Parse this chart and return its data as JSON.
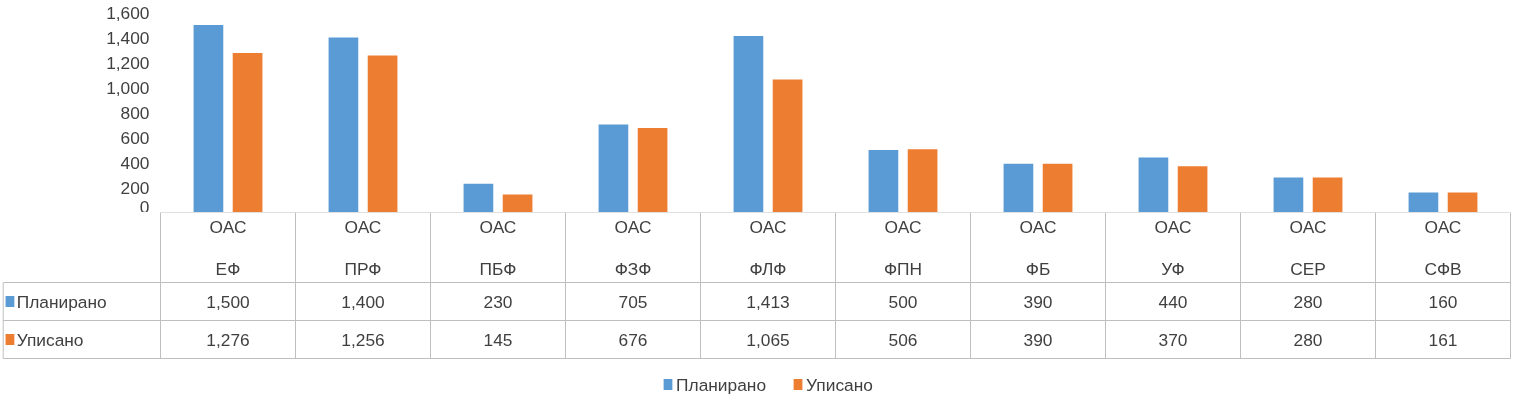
{
  "chart_data": {
    "type": "bar",
    "categories": [
      "ОАС\nЕФ",
      "ОАС\nПРФ",
      "ОАС\nПБФ",
      "ОАС\nФЗФ",
      "ОАС\nФЛФ",
      "ОАС\nФПН",
      "ОАС\nФБ",
      "ОАС\nУФ",
      "ОАС\nСЕР",
      "ОАС\nСФВ"
    ],
    "series": [
      {
        "name": "Планирано",
        "color": "#5b9bd5",
        "values": [
          1500,
          1400,
          230,
          705,
          1413,
          500,
          390,
          440,
          280,
          160
        ],
        "value_labels": [
          "1,500",
          "1,400",
          "230",
          "705",
          "1,413",
          "500",
          "390",
          "440",
          "280",
          "160"
        ]
      },
      {
        "name": "Уписано",
        "color": "#ed7d31",
        "values": [
          1276,
          1256,
          145,
          676,
          1065,
          506,
          390,
          370,
          280,
          161
        ],
        "value_labels": [
          "1,276",
          "1,256",
          "145",
          "676",
          "1,065",
          "506",
          "390",
          "370",
          "280",
          "161"
        ]
      }
    ],
    "ylim": [
      0,
      1600
    ],
    "yticks": [
      0,
      200,
      400,
      600,
      800,
      {
        "value": 1000,
        "label": "1,000"
      },
      {
        "value": 1200,
        "label": "1,200"
      },
      {
        "value": 1400,
        "label": "1,400"
      },
      {
        "value": 1600,
        "label": "1,600"
      }
    ],
    "grid": false,
    "legend": "bottom"
  }
}
